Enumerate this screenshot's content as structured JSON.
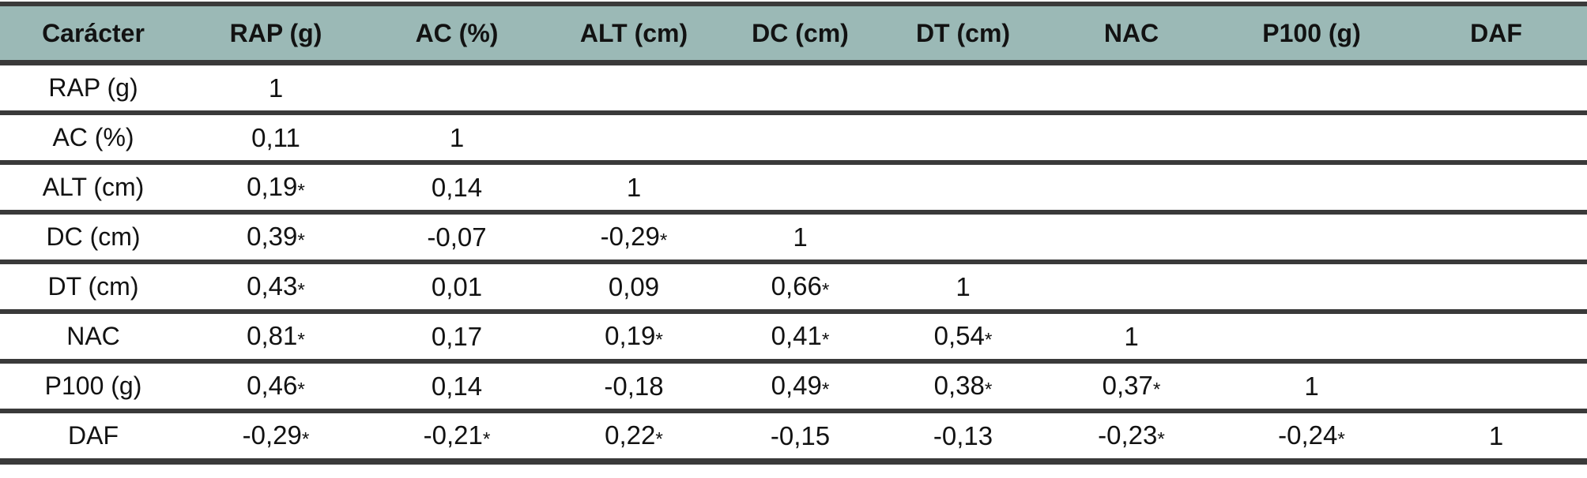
{
  "colors": {
    "header_bg": "#9bb9b6",
    "border": "#3a3a3a",
    "text": "#121212"
  },
  "table": {
    "columns": [
      "Carácter",
      "RAP (g)",
      "AC (%)",
      "ALT (cm)",
      "DC (cm)",
      "DT (cm)",
      "NAC",
      "P100 (g)",
      "DAF"
    ],
    "rows": [
      {
        "label": "RAP (g)",
        "values": [
          "1",
          "",
          "",
          "",
          "",
          "",
          "",
          ""
        ]
      },
      {
        "label": "AC (%)",
        "values": [
          "0,11",
          "1",
          "",
          "",
          "",
          "",
          "",
          ""
        ]
      },
      {
        "label": "ALT (cm)",
        "values": [
          "0,19*",
          "0,14",
          "1",
          "",
          "",
          "",
          "",
          ""
        ]
      },
      {
        "label": "DC (cm)",
        "values": [
          "0,39*",
          "-0,07",
          "-0,29*",
          "1",
          "",
          "",
          "",
          ""
        ]
      },
      {
        "label": "DT (cm)",
        "values": [
          "0,43*",
          "0,01",
          "0,09",
          "0,66*",
          "1",
          "",
          "",
          ""
        ]
      },
      {
        "label": "NAC",
        "values": [
          "0,81*",
          "0,17",
          "0,19*",
          "0,41*",
          "0,54*",
          "1",
          "",
          ""
        ]
      },
      {
        "label": "P100 (g)",
        "values": [
          "0,46*",
          "0,14",
          "-0,18",
          "0,49*",
          "0,38*",
          "0,37*",
          "1",
          ""
        ]
      },
      {
        "label": "DAF",
        "values": [
          "-0,29*",
          "-0,21*",
          "0,22*",
          "-0,15",
          "-0,13",
          "-0,23*",
          "-0,24*",
          "1"
        ]
      }
    ]
  }
}
